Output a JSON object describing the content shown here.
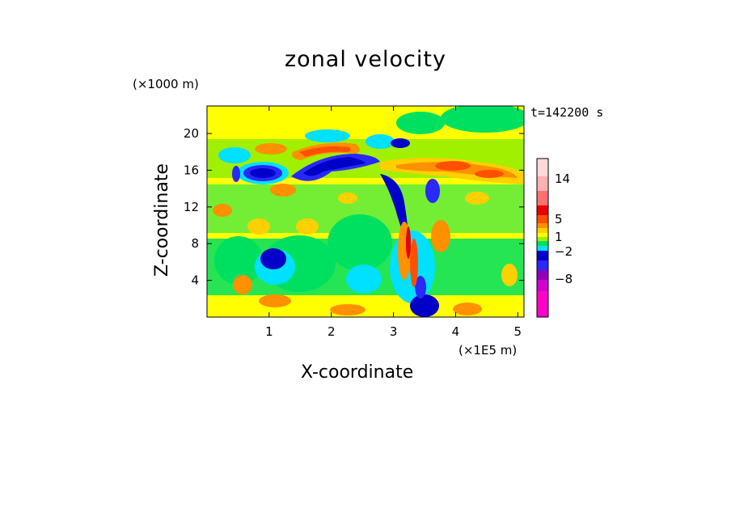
{
  "title": "zonal velocity",
  "time_label": "t=142200 s",
  "chart_data": {
    "type": "heatmap",
    "title": "zonal velocity",
    "xlabel": "X-coordinate",
    "ylabel": "Z-coordinate",
    "x_unit": "(×1E5 m)",
    "y_unit": "(×1000 m)",
    "xlim": [
      0,
      5.1
    ],
    "ylim": [
      0,
      23
    ],
    "x_ticks": [
      1,
      2,
      3,
      4,
      5
    ],
    "y_ticks": [
      4,
      8,
      12,
      16,
      20
    ],
    "grid": false,
    "colorbar": {
      "position": "right",
      "tick_labels": [
        "14",
        "5",
        "1",
        "−2",
        "−8"
      ],
      "colors": [
        "#ff00c8",
        "#d000d0",
        "#9000b8",
        "#2828ff",
        "#0000c8",
        "#00e0ff",
        "#00e060",
        "#a0f000",
        "#ffff00",
        "#ffd000",
        "#ff9000",
        "#ff5000",
        "#e80000",
        "#ff7070",
        "#ffb0b0",
        "#ffd8d8"
      ]
    },
    "features": [
      {
        "sign": "negative",
        "x": 0.95,
        "z": 15.5,
        "level": "strong"
      },
      {
        "sign": "negative",
        "x": 1.9,
        "z": 16.5,
        "level": "strong"
      },
      {
        "sign": "negative",
        "x": 3.25,
        "z": 12.0,
        "level": "strong"
      },
      {
        "sign": "negative",
        "x": 0.9,
        "z": 6.5,
        "level": "strong"
      },
      {
        "sign": "negative",
        "x": 3.5,
        "z": 2.0,
        "level": "strong"
      },
      {
        "sign": "positive",
        "x": 1.85,
        "z": 18.2,
        "level": "moderate"
      },
      {
        "sign": "positive",
        "x": 4.2,
        "z": 16.5,
        "level": "moderate"
      },
      {
        "sign": "positive",
        "x": 3.35,
        "z": 6.0,
        "level": "strong"
      }
    ]
  }
}
